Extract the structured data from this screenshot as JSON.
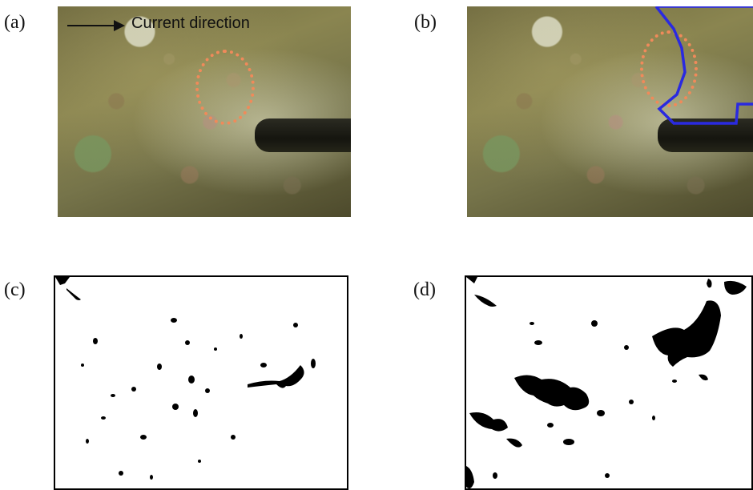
{
  "panels": {
    "a": {
      "label": "(a)",
      "caption": "Current direction"
    },
    "b": {
      "label": "(b)"
    },
    "c": {
      "label": "(c)"
    },
    "d": {
      "label": "(d)"
    }
  },
  "colors": {
    "scour_marker": "#f08a5a",
    "boundary": "#2a2ae0",
    "mask_black": "#000000",
    "mask_white": "#ffffff"
  }
}
